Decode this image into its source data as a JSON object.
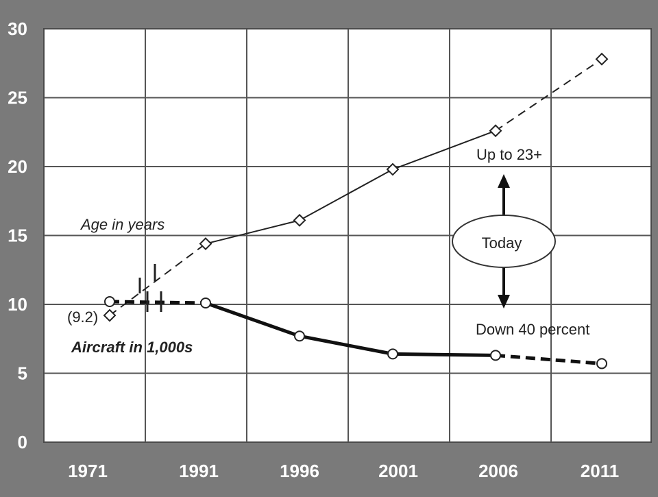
{
  "chart_data": {
    "type": "line",
    "x_categories": [
      "1971",
      "1991",
      "1996",
      "2001",
      "2006",
      "2011"
    ],
    "y_ticks": [
      "0",
      "5",
      "10",
      "15",
      "20",
      "25",
      "30"
    ],
    "ylim": [
      0,
      30
    ],
    "grid": true,
    "series": [
      {
        "name": "Age in years",
        "style": "thin",
        "marker": "diamond",
        "values": [
          9.2,
          14.4,
          16.1,
          19.8,
          22.6,
          27.8
        ]
      },
      {
        "name": "Aircraft in 1,000s",
        "style": "thick",
        "marker": "circle",
        "values": [
          10.2,
          10.1,
          7.7,
          6.4,
          6.3,
          5.7
        ]
      }
    ],
    "annotations": {
      "initial_age": "(9.2)",
      "up": "Up to 23+",
      "today": "Today",
      "down": "Down 40 percent"
    }
  }
}
